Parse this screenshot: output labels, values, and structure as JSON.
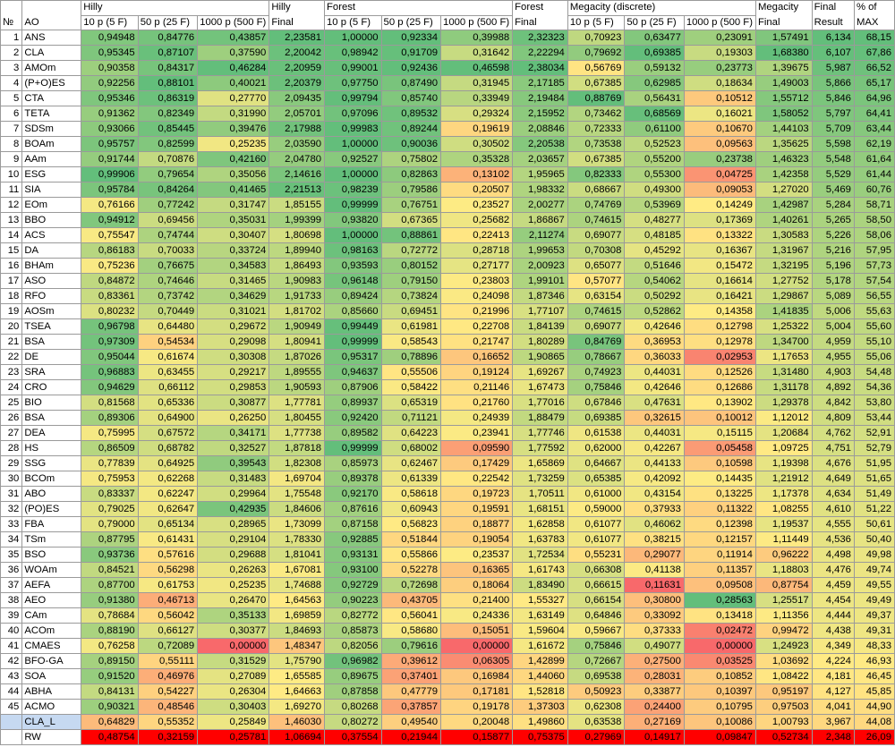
{
  "header": {
    "no": "№",
    "ao": "AO",
    "hilly": "Hilly",
    "hilly_final": [
      "Hilly",
      "Final"
    ],
    "forest": "Forest",
    "forest_final": [
      "Forest",
      "Final"
    ],
    "megacity": "Megacity (discrete)",
    "megacity_final": [
      "Megacity",
      "Final"
    ],
    "final_result": [
      "Final",
      "Result"
    ],
    "pct_max": [
      "% of",
      "MAX"
    ],
    "sub": [
      "10 p (5 F)",
      "50 p (25 F)",
      "1000 p (500 F)"
    ]
  },
  "rows": [
    [
      "1",
      "ANS",
      "0,94948",
      "0,84776",
      "0,43857",
      "2,23581",
      "1,00000",
      "0,92334",
      "0,39988",
      "2,32323",
      "0,70923",
      "0,63477",
      "0,23091",
      "1,57491",
      "6,134",
      "68,15"
    ],
    [
      "2",
      "CLA",
      "0,95345",
      "0,87107",
      "0,37590",
      "2,20042",
      "0,98942",
      "0,91709",
      "0,31642",
      "2,22294",
      "0,79692",
      "0,69385",
      "0,19303",
      "1,68380",
      "6,107",
      "67,86"
    ],
    [
      "3",
      "AMOm",
      "0,90358",
      "0,84317",
      "0,46284",
      "2,20959",
      "0,99001",
      "0,92436",
      "0,46598",
      "2,38034",
      "0,56769",
      "0,59132",
      "0,23773",
      "1,39675",
      "5,987",
      "66,52"
    ],
    [
      "4",
      "(P+O)ES",
      "0,92256",
      "0,88101",
      "0,40021",
      "2,20379",
      "0,97750",
      "0,87490",
      "0,31945",
      "2,17185",
      "0,67385",
      "0,62985",
      "0,18634",
      "1,49003",
      "5,866",
      "65,17"
    ],
    [
      "5",
      "CTA",
      "0,95346",
      "0,86319",
      "0,27770",
      "2,09435",
      "0,99794",
      "0,85740",
      "0,33949",
      "2,19484",
      "0,88769",
      "0,56431",
      "0,10512",
      "1,55712",
      "5,846",
      "64,96"
    ],
    [
      "6",
      "TETA",
      "0,91362",
      "0,82349",
      "0,31990",
      "2,05701",
      "0,97096",
      "0,89532",
      "0,29324",
      "2,15952",
      "0,73462",
      "0,68569",
      "0,16021",
      "1,58052",
      "5,797",
      "64,41"
    ],
    [
      "7",
      "SDSm",
      "0,93066",
      "0,85445",
      "0,39476",
      "2,17988",
      "0,99983",
      "0,89244",
      "0,19619",
      "2,08846",
      "0,72333",
      "0,61100",
      "0,10670",
      "1,44103",
      "5,709",
      "63,44"
    ],
    [
      "8",
      "BOAm",
      "0,95757",
      "0,82599",
      "0,25235",
      "2,03590",
      "1,00000",
      "0,90036",
      "0,30502",
      "2,20538",
      "0,73538",
      "0,52523",
      "0,09563",
      "1,35625",
      "5,598",
      "62,19"
    ],
    [
      "9",
      "AAm",
      "0,91744",
      "0,70876",
      "0,42160",
      "2,04780",
      "0,92527",
      "0,75802",
      "0,35328",
      "2,03657",
      "0,67385",
      "0,55200",
      "0,23738",
      "1,46323",
      "5,548",
      "61,64"
    ],
    [
      "10",
      "ESG",
      "0,99906",
      "0,79654",
      "0,35056",
      "2,14616",
      "1,00000",
      "0,82863",
      "0,13102",
      "1,95965",
      "0,82333",
      "0,55300",
      "0,04725",
      "1,42358",
      "5,529",
      "61,44"
    ],
    [
      "11",
      "SIA",
      "0,95784",
      "0,84264",
      "0,41465",
      "2,21513",
      "0,98239",
      "0,79586",
      "0,20507",
      "1,98332",
      "0,68667",
      "0,49300",
      "0,09053",
      "1,27020",
      "5,469",
      "60,76"
    ],
    [
      "12",
      "EOm",
      "0,76166",
      "0,77242",
      "0,31747",
      "1,85155",
      "0,99999",
      "0,76751",
      "0,23527",
      "2,00277",
      "0,74769",
      "0,53969",
      "0,14249",
      "1,42987",
      "5,284",
      "58,71"
    ],
    [
      "13",
      "BBO",
      "0,94912",
      "0,69456",
      "0,35031",
      "1,99399",
      "0,93820",
      "0,67365",
      "0,25682",
      "1,86867",
      "0,74615",
      "0,48277",
      "0,17369",
      "1,40261",
      "5,265",
      "58,50"
    ],
    [
      "14",
      "ACS",
      "0,75547",
      "0,74744",
      "0,30407",
      "1,80698",
      "1,00000",
      "0,88861",
      "0,22413",
      "2,11274",
      "0,69077",
      "0,48185",
      "0,13322",
      "1,30583",
      "5,226",
      "58,06"
    ],
    [
      "15",
      "DA",
      "0,86183",
      "0,70033",
      "0,33724",
      "1,89940",
      "0,98163",
      "0,72772",
      "0,28718",
      "1,99653",
      "0,70308",
      "0,45292",
      "0,16367",
      "1,31967",
      "5,216",
      "57,95"
    ],
    [
      "16",
      "BHAm",
      "0,75236",
      "0,76675",
      "0,34583",
      "1,86493",
      "0,93593",
      "0,80152",
      "0,27177",
      "2,00923",
      "0,65077",
      "0,51646",
      "0,15472",
      "1,32195",
      "5,196",
      "57,73"
    ],
    [
      "17",
      "ASO",
      "0,84872",
      "0,74646",
      "0,31465",
      "1,90983",
      "0,96148",
      "0,79150",
      "0,23803",
      "1,99101",
      "0,57077",
      "0,54062",
      "0,16614",
      "1,27752",
      "5,178",
      "57,54"
    ],
    [
      "18",
      "RFO",
      "0,83361",
      "0,73742",
      "0,34629",
      "1,91733",
      "0,89424",
      "0,73824",
      "0,24098",
      "1,87346",
      "0,63154",
      "0,50292",
      "0,16421",
      "1,29867",
      "5,089",
      "56,55"
    ],
    [
      "19",
      "AOSm",
      "0,80232",
      "0,70449",
      "0,31021",
      "1,81702",
      "0,85660",
      "0,69451",
      "0,21996",
      "1,77107",
      "0,74615",
      "0,52862",
      "0,14358",
      "1,41835",
      "5,006",
      "55,63"
    ],
    [
      "20",
      "TSEA",
      "0,96798",
      "0,64480",
      "0,29672",
      "1,90949",
      "0,99449",
      "0,61981",
      "0,22708",
      "1,84139",
      "0,69077",
      "0,42646",
      "0,12798",
      "1,25322",
      "5,004",
      "55,60"
    ],
    [
      "21",
      "BSA",
      "0,97309",
      "0,54534",
      "0,29098",
      "1,80941",
      "0,99999",
      "0,58543",
      "0,21747",
      "1,80289",
      "0,84769",
      "0,36953",
      "0,12978",
      "1,34700",
      "4,959",
      "55,10"
    ],
    [
      "22",
      "DE",
      "0,95044",
      "0,61674",
      "0,30308",
      "1,87026",
      "0,95317",
      "0,78896",
      "0,16652",
      "1,90865",
      "0,78667",
      "0,36033",
      "0,02953",
      "1,17653",
      "4,955",
      "55,06"
    ],
    [
      "23",
      "SRA",
      "0,96883",
      "0,63455",
      "0,29217",
      "1,89555",
      "0,94637",
      "0,55506",
      "0,19124",
      "1,69267",
      "0,74923",
      "0,44031",
      "0,12526",
      "1,31480",
      "4,903",
      "54,48"
    ],
    [
      "24",
      "CRO",
      "0,94629",
      "0,66112",
      "0,29853",
      "1,90593",
      "0,87906",
      "0,58422",
      "0,21146",
      "1,67473",
      "0,75846",
      "0,42646",
      "0,12686",
      "1,31178",
      "4,892",
      "54,36"
    ],
    [
      "25",
      "BIO",
      "0,81568",
      "0,65336",
      "0,30877",
      "1,77781",
      "0,89937",
      "0,65319",
      "0,21760",
      "1,77016",
      "0,67846",
      "0,47631",
      "0,13902",
      "1,29378",
      "4,842",
      "53,80"
    ],
    [
      "26",
      "BSA",
      "0,89306",
      "0,64900",
      "0,26250",
      "1,80455",
      "0,92420",
      "0,71121",
      "0,24939",
      "1,88479",
      "0,69385",
      "0,32615",
      "0,10012",
      "1,12012",
      "4,809",
      "53,44"
    ],
    [
      "27",
      "DEA",
      "0,75995",
      "0,67572",
      "0,34171",
      "1,77738",
      "0,89582",
      "0,64223",
      "0,23941",
      "1,77746",
      "0,61538",
      "0,44031",
      "0,15115",
      "1,20684",
      "4,762",
      "52,91"
    ],
    [
      "28",
      "HS",
      "0,86509",
      "0,68782",
      "0,32527",
      "1,87818",
      "0,99999",
      "0,68002",
      "0,09590",
      "1,77592",
      "0,62000",
      "0,42267",
      "0,05458",
      "1,09725",
      "4,751",
      "52,79"
    ],
    [
      "29",
      "SSG",
      "0,77839",
      "0,64925",
      "0,39543",
      "1,82308",
      "0,85973",
      "0,62467",
      "0,17429",
      "1,65869",
      "0,64667",
      "0,44133",
      "0,10598",
      "1,19398",
      "4,676",
      "51,95"
    ],
    [
      "30",
      "BCOm",
      "0,75953",
      "0,62268",
      "0,31483",
      "1,69704",
      "0,89378",
      "0,61339",
      "0,22542",
      "1,73259",
      "0,65385",
      "0,42092",
      "0,14435",
      "1,21912",
      "4,649",
      "51,65"
    ],
    [
      "31",
      "ABO",
      "0,83337",
      "0,62247",
      "0,29964",
      "1,75548",
      "0,92170",
      "0,58618",
      "0,19723",
      "1,70511",
      "0,61000",
      "0,43154",
      "0,13225",
      "1,17378",
      "4,634",
      "51,49"
    ],
    [
      "32",
      "(PO)ES",
      "0,79025",
      "0,62647",
      "0,42935",
      "1,84606",
      "0,87616",
      "0,60943",
      "0,19591",
      "1,68151",
      "0,59000",
      "0,37933",
      "0,11322",
      "1,08255",
      "4,610",
      "51,22"
    ],
    [
      "33",
      "FBA",
      "0,79000",
      "0,65134",
      "0,28965",
      "1,73099",
      "0,87158",
      "0,56823",
      "0,18877",
      "1,62858",
      "0,61077",
      "0,46062",
      "0,12398",
      "1,19537",
      "4,555",
      "50,61"
    ],
    [
      "34",
      "TSm",
      "0,87795",
      "0,61431",
      "0,29104",
      "1,78330",
      "0,92885",
      "0,51844",
      "0,19054",
      "1,63783",
      "0,61077",
      "0,38215",
      "0,12157",
      "1,11449",
      "4,536",
      "50,40"
    ],
    [
      "35",
      "BSO",
      "0,93736",
      "0,57616",
      "0,29688",
      "1,81041",
      "0,93131",
      "0,55866",
      "0,23537",
      "1,72534",
      "0,55231",
      "0,29077",
      "0,11914",
      "0,96222",
      "4,498",
      "49,98"
    ],
    [
      "36",
      "WOAm",
      "0,84521",
      "0,56298",
      "0,26263",
      "1,67081",
      "0,93100",
      "0,52278",
      "0,16365",
      "1,61743",
      "0,66308",
      "0,41138",
      "0,11357",
      "1,18803",
      "4,476",
      "49,74"
    ],
    [
      "37",
      "AEFA",
      "0,87700",
      "0,61753",
      "0,25235",
      "1,74688",
      "0,92729",
      "0,72698",
      "0,18064",
      "1,83490",
      "0,66615",
      "0,11631",
      "0,09508",
      "0,87754",
      "4,459",
      "49,55"
    ],
    [
      "38",
      "AEO",
      "0,91380",
      "0,46713",
      "0,26470",
      "1,64563",
      "0,90223",
      "0,43705",
      "0,21400",
      "1,55327",
      "0,66154",
      "0,30800",
      "0,28563",
      "1,25517",
      "4,454",
      "49,49"
    ],
    [
      "39",
      "CAm",
      "0,78684",
      "0,56042",
      "0,35133",
      "1,69859",
      "0,82772",
      "0,56041",
      "0,24336",
      "1,63149",
      "0,64846",
      "0,33092",
      "0,13418",
      "1,11356",
      "4,444",
      "49,37"
    ],
    [
      "40",
      "ACOm",
      "0,88190",
      "0,66127",
      "0,30377",
      "1,84693",
      "0,85873",
      "0,58680",
      "0,15051",
      "1,59604",
      "0,59667",
      "0,37333",
      "0,02472",
      "0,99472",
      "4,438",
      "49,31"
    ],
    [
      "41",
      "CMAES",
      "0,76258",
      "0,72089",
      "0,00000",
      "1,48347",
      "0,82056",
      "0,79616",
      "0,00000",
      "1,61672",
      "0,75846",
      "0,49077",
      "0,00000",
      "1,24923",
      "4,349",
      "48,33"
    ],
    [
      "42",
      "BFO-GA",
      "0,89150",
      "0,55111",
      "0,31529",
      "1,75790",
      "0,96982",
      "0,39612",
      "0,06305",
      "1,42899",
      "0,72667",
      "0,27500",
      "0,03525",
      "1,03692",
      "4,224",
      "46,93"
    ],
    [
      "43",
      "SOA",
      "0,91520",
      "0,46976",
      "0,27089",
      "1,65585",
      "0,89675",
      "0,37401",
      "0,16984",
      "1,44060",
      "0,69538",
      "0,28031",
      "0,10852",
      "1,08422",
      "4,181",
      "46,45"
    ],
    [
      "44",
      "ABHA",
      "0,84131",
      "0,54227",
      "0,26304",
      "1,64663",
      "0,87858",
      "0,47779",
      "0,17181",
      "1,52818",
      "0,50923",
      "0,33877",
      "0,10397",
      "0,95197",
      "4,127",
      "45,85"
    ],
    [
      "45",
      "ACMO",
      "0,90321",
      "0,48546",
      "0,30403",
      "1,69270",
      "0,80268",
      "0,37857",
      "0,19178",
      "1,37303",
      "0,62308",
      "0,24400",
      "0,10795",
      "0,97503",
      "4,041",
      "44,90"
    ],
    [
      "",
      "CLA_L",
      "0,64829",
      "0,55352",
      "0,25849",
      "1,46030",
      "0,80272",
      "0,49540",
      "0,20048",
      "1,49860",
      "0,63538",
      "0,27169",
      "0,10086",
      "1,00793",
      "3,967",
      "44,08"
    ],
    [
      "",
      "RW",
      "0,48754",
      "0,32159",
      "0,25781",
      "1,06694",
      "0,37554",
      "0,21944",
      "0,15877",
      "0,75375",
      "0,27969",
      "0,14917",
      "0,09847",
      "0,52734",
      "2,348",
      "26,09"
    ]
  ],
  "colors": {
    "header_bg": "#ffffff",
    "name_bg": "#ffffff",
    "clal_bg": "#c6d9f1",
    "rw_bg": "#ff0000",
    "grid": "#9a9a9a"
  }
}
